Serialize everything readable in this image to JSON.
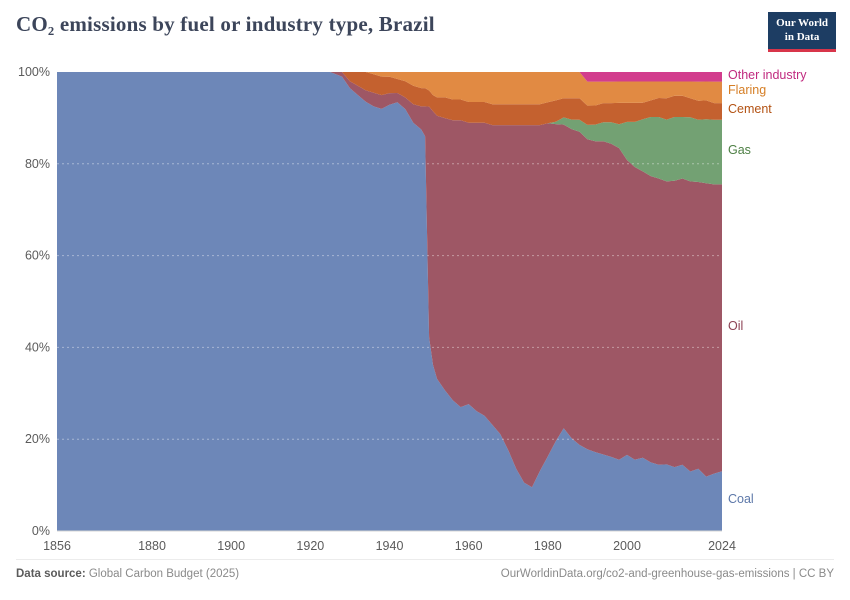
{
  "header": {
    "title": "CO₂ emissions by fuel or industry type, Brazil",
    "logo": {
      "line1": "Our World",
      "line2": "in Data"
    }
  },
  "chart_data": {
    "type": "area",
    "stacking": "percent",
    "title": "CO₂ emissions by fuel or industry type, Brazil",
    "xlabel": "",
    "ylabel": "",
    "xlim": [
      1856,
      2024
    ],
    "ylim": [
      0,
      100
    ],
    "grid": true,
    "legend_position": "right",
    "x_ticks": [
      1856,
      1880,
      1900,
      1920,
      1940,
      1960,
      1980,
      2000,
      2024
    ],
    "y_ticks": [
      "0%",
      "20%",
      "40%",
      "60%",
      "80%",
      "100%"
    ],
    "x": [
      1856,
      1880,
      1900,
      1910,
      1920,
      1925,
      1928,
      1930,
      1932,
      1934,
      1936,
      1938,
      1940,
      1942,
      1944,
      1946,
      1948,
      1949,
      1950,
      1951,
      1952,
      1954,
      1956,
      1958,
      1960,
      1962,
      1964,
      1966,
      1968,
      1970,
      1972,
      1974,
      1976,
      1978,
      1980,
      1982,
      1984,
      1986,
      1988,
      1990,
      1992,
      1994,
      1996,
      1998,
      2000,
      2002,
      2004,
      2006,
      2008,
      2010,
      2012,
      2014,
      2016,
      2018,
      2020,
      2022,
      2024
    ],
    "series": [
      {
        "name": "Coal",
        "color": "#6d87b8",
        "label_color": "#5d78a9",
        "values": [
          100,
          100,
          100,
          100,
          100,
          100,
          99,
          96.5,
          95,
          93.5,
          92.5,
          91.5,
          91,
          92,
          91,
          88.5,
          87.5,
          86,
          42,
          36,
          33,
          30.5,
          28.5,
          27,
          27.5,
          26,
          25,
          23,
          21,
          17.5,
          13.5,
          10.5,
          9.5,
          13,
          16,
          19,
          21.5,
          19.5,
          18,
          17,
          16.5,
          16,
          15.5,
          15,
          16,
          15,
          15.5,
          14.5,
          14,
          14,
          13.5,
          14,
          12.5,
          13,
          11.5,
          12,
          12.5
        ]
      },
      {
        "name": "Oil",
        "color": "#9e5765",
        "label_color": "#8d4355",
        "values": [
          0,
          0,
          0,
          0,
          0,
          0,
          1,
          1.5,
          2,
          2.5,
          3,
          3,
          2.5,
          2,
          2.5,
          4,
          5,
          6.5,
          50,
          55,
          57,
          59,
          61,
          62.5,
          61,
          62.5,
          63.5,
          65,
          67,
          70.5,
          74.5,
          77.5,
          78.5,
          75,
          71.5,
          67,
          63.5,
          65,
          65.5,
          64.5,
          65,
          65.5,
          65.5,
          65.5,
          62,
          61.5,
          60.5,
          60.5,
          60.5,
          59.5,
          60.5,
          60.5,
          61,
          60,
          62,
          60.5,
          60
        ]
      },
      {
        "name": "Gas",
        "color": "#73a173",
        "label_color": "#4e8045",
        "values": [
          0,
          0,
          0,
          0,
          0,
          0,
          0,
          0,
          0,
          0,
          0,
          0,
          0,
          0,
          0,
          0,
          0,
          0,
          0,
          0,
          0,
          0,
          0,
          0,
          0,
          0,
          0,
          0,
          0,
          0,
          0,
          0,
          0,
          0,
          0,
          0.5,
          1.5,
          2,
          2.5,
          3,
          3.5,
          4,
          4.5,
          5,
          8,
          9.5,
          11,
          12.5,
          13,
          13,
          13.5,
          13,
          13.5,
          13,
          13.5,
          13.5,
          13.5
        ]
      },
      {
        "name": "Cement",
        "color": "#c4612f",
        "label_color": "#b35213",
        "values": [
          0,
          0,
          0,
          0,
          0,
          0,
          0,
          2,
          3,
          4,
          4,
          4,
          3.5,
          3,
          3.5,
          4,
          4,
          4,
          3.5,
          3.5,
          4,
          4.5,
          4.5,
          4.5,
          4.5,
          4.5,
          4.5,
          4.5,
          4.5,
          4.5,
          4.5,
          4.5,
          4.5,
          4.5,
          4.5,
          4.5,
          4,
          4.5,
          4.5,
          4,
          4,
          4,
          4,
          4.5,
          4,
          4,
          3.5,
          3.5,
          4,
          4.5,
          4.5,
          4.5,
          4,
          4,
          4,
          3.5,
          3.5
        ]
      },
      {
        "name": "Flaring",
        "color": "#e18a43",
        "label_color": "#d57e25",
        "values": [
          0,
          0,
          0,
          0,
          0,
          0,
          0,
          0,
          0,
          0,
          0.5,
          1,
          1,
          1.5,
          2,
          3,
          3.5,
          3.5,
          4,
          5,
          5.5,
          5.5,
          6,
          6,
          6.5,
          6.5,
          6.5,
          7,
          7,
          7,
          7,
          7,
          7,
          7,
          6.5,
          6,
          5.5,
          5.5,
          5.5,
          5,
          5,
          4.5,
          4.5,
          4.5,
          4.5,
          4.5,
          4.5,
          4,
          3.5,
          3.5,
          3,
          3,
          3.5,
          4,
          4,
          4.5,
          4.5
        ]
      },
      {
        "name": "Other industry",
        "color": "#d23d8d",
        "label_color": "#c02a7f",
        "values": [
          0,
          0,
          0,
          0,
          0,
          0,
          0,
          0,
          0,
          0,
          0,
          0,
          0,
          0,
          0,
          0,
          0,
          0,
          0,
          0,
          0,
          0,
          0,
          0,
          0,
          0,
          0,
          0,
          0,
          0,
          0,
          0,
          0,
          0,
          0,
          0,
          0,
          0,
          0,
          2,
          2,
          2,
          2,
          2,
          2,
          2,
          2,
          2,
          2,
          2,
          2,
          2,
          2,
          2,
          2,
          2,
          2
        ]
      }
    ]
  },
  "footer": {
    "source_label": "Data source:",
    "source_value": " Global Carbon Budget (2025)",
    "link": "OurWorldinData.org/co2-and-greenhouse-gas-emissions | CC BY"
  }
}
